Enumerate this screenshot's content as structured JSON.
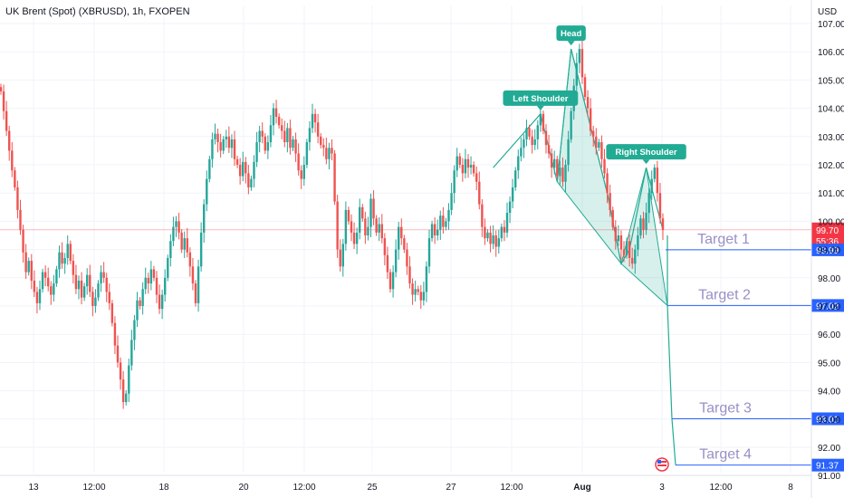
{
  "chart_data": {
    "type": "candlestick",
    "title": "UK Brent (Spot) (XBRUSD), 1h, FXOPEN",
    "currency": "USD",
    "ylim": [
      91.0,
      107.3
    ],
    "y_ticks": [
      "107.00",
      "106.00",
      "105.00",
      "104.00",
      "103.00",
      "102.00",
      "101.00",
      "100.00",
      "99.00",
      "98.00",
      "97.00",
      "96.00",
      "95.00",
      "94.00",
      "93.00",
      "92.00",
      "91.00"
    ],
    "x_ticks": [
      "13",
      "12:00",
      "18",
      "20",
      "12:00",
      "25",
      "27",
      "12:00",
      "Aug",
      "3",
      "12:00",
      "8"
    ],
    "colors": {
      "up": "#26a69a",
      "down": "#ef5350",
      "pattern": "#22ab94",
      "target": "#2962ff",
      "current": "#f23645"
    },
    "patterns": [
      {
        "label": "Left Shoulder",
        "price": 103.8
      },
      {
        "label": "Head",
        "price": 106.1
      },
      {
        "label": "Right Shoulder",
        "price": 101.9
      }
    ],
    "targets": [
      {
        "label": "Target 1",
        "price": 98.99,
        "tag": "98.99"
      },
      {
        "label": "Target 2",
        "price": 97.02,
        "tag": "97.02"
      },
      {
        "label": "Target 3",
        "price": 93.01,
        "tag": "93.01"
      },
      {
        "label": "Target 4",
        "price": 91.37,
        "tag": "91.37"
      }
    ],
    "current": {
      "price": 99.7,
      "tag": "99.70",
      "countdown": "55:36"
    },
    "series": [
      {
        "values": [
          104.6,
          103.9,
          103.2,
          102.5,
          101.8,
          101.2,
          100.4,
          99.7,
          98.9,
          98.2,
          98.6,
          97.9,
          97.5,
          97.1,
          97.6,
          98.2,
          98.0,
          97.7,
          97.4,
          97.8,
          98.3,
          98.9,
          98.5,
          98.7,
          99.2,
          98.6,
          98.1,
          97.6,
          97.9,
          97.3,
          97.7,
          98.1,
          97.5,
          97.0,
          97.3,
          97.8,
          98.2,
          98.0,
          97.5,
          97.1,
          96.4,
          95.6,
          95.0,
          94.4,
          93.6,
          93.9,
          94.9,
          95.8,
          96.5,
          97.2,
          97.0,
          97.6,
          98.0,
          97.8,
          98.3,
          98.0,
          97.4,
          96.9,
          97.4,
          98.0,
          98.7,
          99.3,
          99.8,
          100.0,
          99.6,
          99.0,
          99.4,
          98.9,
          98.4,
          97.8,
          97.1,
          98.4,
          99.6,
          100.6,
          101.5,
          102.2,
          102.9,
          103.1,
          102.8,
          102.5,
          102.9,
          103.0,
          102.6,
          102.9,
          102.2,
          102.0,
          101.6,
          102.1,
          101.7,
          101.2,
          101.5,
          102.1,
          102.8,
          103.2,
          103.0,
          102.5,
          102.8,
          103.4,
          104.0,
          103.7,
          103.4,
          103.2,
          102.8,
          103.3,
          102.6,
          102.9,
          102.4,
          101.8,
          101.5,
          102.0,
          102.8,
          103.3,
          103.8,
          103.5,
          103.0,
          102.7,
          102.6,
          102.2,
          102.6,
          102.4,
          100.7,
          99.0,
          98.4,
          99.2,
          100.4,
          100.0,
          99.6,
          99.2,
          99.6,
          100.5,
          100.1,
          99.5,
          99.8,
          100.8,
          100.1,
          99.6,
          99.9,
          99.4,
          98.8,
          98.2,
          97.6,
          98.2,
          99.0,
          99.8,
          99.4,
          99.0,
          98.4,
          97.8,
          97.4,
          97.6,
          97.5,
          97.2,
          97.5,
          98.4,
          99.4,
          99.9,
          99.5,
          99.7,
          100.2,
          99.8,
          100.0,
          100.4,
          101.0,
          101.8,
          102.3,
          102.0,
          101.7,
          102.2,
          101.9,
          102.0,
          101.7,
          101.4,
          100.6,
          99.8,
          99.4,
          99.6,
          99.2,
          99.5,
          99.1,
          99.4,
          99.8,
          99.6,
          100.3,
          100.7,
          101.2,
          101.8,
          102.3,
          102.6,
          102.9,
          103.3,
          103.0,
          102.7,
          102.9,
          103.4,
          103.8,
          103.2,
          102.7,
          102.4,
          101.9,
          102.2,
          101.6,
          101.9,
          101.4,
          102.0,
          102.9,
          103.9,
          104.8,
          105.6,
          106.1,
          105.1,
          104.4,
          104.0,
          103.2,
          103.0,
          102.6,
          102.8,
          102.2,
          101.7,
          101.0,
          100.4,
          99.8,
          99.3,
          99.5,
          99.0,
          98.8,
          99.3,
          98.7,
          98.5,
          99.0,
          99.5,
          100.1,
          99.7,
          100.3,
          101.0,
          101.5,
          101.9,
          101.0,
          100.1,
          99.7
        ]
      }
    ]
  }
}
